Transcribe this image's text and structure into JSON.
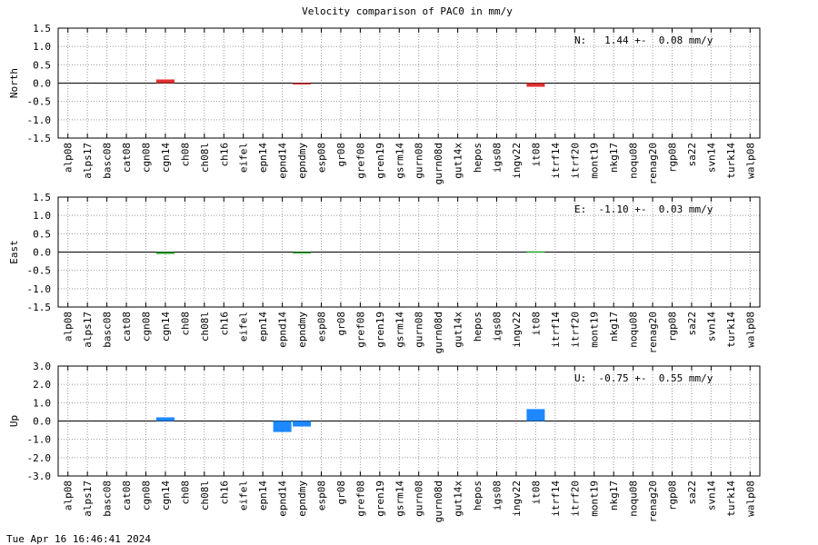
{
  "title": "Velocity comparison of PAC0 in mm/y",
  "footer": "Tue Apr 16 16:46:41 2024",
  "chart_data": [
    {
      "type": "bar",
      "ylabel": "North",
      "annotation": "N:   1.44 +-  0.08 mm/y",
      "color": "#e03030",
      "grid": true,
      "categories": [
        "alp08",
        "alps17",
        "basc08",
        "cat08",
        "cgn08",
        "cgn14",
        "ch08",
        "ch08l",
        "ch16",
        "eifel",
        "epn14",
        "epnd14",
        "epndmy",
        "esp08",
        "gr08",
        "gref08",
        "gren19",
        "gsrm14",
        "gurn08",
        "gurn08d",
        "gut14x",
        "hepos",
        "igs08",
        "ingv22",
        "it08",
        "itrf14",
        "itrf20",
        "mont19",
        "nkg17",
        "noqu08",
        "renag20",
        "rgp08",
        "sa22",
        "svn14",
        "turk14",
        "walp08"
      ],
      "values": [
        null,
        null,
        null,
        null,
        null,
        0.1,
        null,
        null,
        null,
        null,
        null,
        null,
        -0.02,
        null,
        null,
        null,
        null,
        null,
        null,
        null,
        null,
        null,
        null,
        null,
        -0.1,
        null,
        null,
        null,
        null,
        null,
        null,
        null,
        null,
        null,
        null,
        null
      ],
      "ylim": [
        -1.5,
        1.5
      ],
      "yticks": [
        -1.5,
        {
          "value": -1.0,
          "label": "-1.0"
        },
        -0.5,
        {
          "value": 0,
          "label": "0.0"
        },
        0.5,
        {
          "value": 1.0,
          "label": "1.0"
        },
        1.5
      ]
    },
    {
      "type": "bar",
      "ylabel": "East",
      "annotation": "E:  -1.10 +-  0.03 mm/y",
      "color": "#22a022",
      "grid": true,
      "categories": [
        "alp08",
        "alps17",
        "basc08",
        "cat08",
        "cgn08",
        "cgn14",
        "ch08",
        "ch08l",
        "ch16",
        "eifel",
        "epn14",
        "epnd14",
        "epndmy",
        "esp08",
        "gr08",
        "gref08",
        "gren19",
        "gsrm14",
        "gurn08",
        "gurn08d",
        "gut14x",
        "hepos",
        "igs08",
        "ingv22",
        "it08",
        "itrf14",
        "itrf20",
        "mont19",
        "nkg17",
        "noqu08",
        "renag20",
        "rgp08",
        "sa22",
        "svn14",
        "turk14",
        "walp08"
      ],
      "values": [
        null,
        null,
        null,
        null,
        null,
        -0.05,
        null,
        null,
        null,
        null,
        null,
        null,
        -0.02,
        null,
        null,
        null,
        null,
        null,
        null,
        null,
        null,
        null,
        null,
        null,
        0.02,
        null,
        null,
        null,
        null,
        null,
        null,
        null,
        null,
        null,
        null,
        null
      ],
      "ylim": [
        -1.5,
        1.5
      ],
      "yticks": [
        -1.5,
        {
          "value": -1.0,
          "label": "-1.0"
        },
        -0.5,
        {
          "value": 0,
          "label": "0.0"
        },
        0.5,
        {
          "value": 1.0,
          "label": "1.0"
        },
        1.5
      ]
    },
    {
      "type": "bar",
      "ylabel": "Up",
      "annotation": "U:  -0.75 +-  0.55 mm/y",
      "color": "#1e88ff",
      "grid": true,
      "categories": [
        "alp08",
        "alps17",
        "basc08",
        "cat08",
        "cgn08",
        "cgn14",
        "ch08",
        "ch08l",
        "ch16",
        "eifel",
        "epn14",
        "epnd14",
        "epndmy",
        "esp08",
        "gr08",
        "gref08",
        "gren19",
        "gsrm14",
        "gurn08",
        "gurn08d",
        "gut14x",
        "hepos",
        "igs08",
        "ingv22",
        "it08",
        "itrf14",
        "itrf20",
        "mont19",
        "nkg17",
        "noqu08",
        "renag20",
        "rgp08",
        "sa22",
        "svn14",
        "turk14",
        "walp08"
      ],
      "values": [
        null,
        null,
        null,
        null,
        null,
        0.2,
        null,
        null,
        null,
        null,
        null,
        -0.6,
        -0.3,
        null,
        null,
        null,
        null,
        null,
        null,
        null,
        null,
        null,
        null,
        null,
        0.65,
        null,
        null,
        null,
        null,
        null,
        null,
        null,
        null,
        null,
        null,
        null
      ],
      "ylim": [
        -3,
        3
      ],
      "yticks": [
        {
          "value": -3,
          "label": "-3.0"
        },
        {
          "value": -2,
          "label": "-2.0"
        },
        {
          "value": -1,
          "label": "-1.0"
        },
        {
          "value": 0,
          "label": "0.0"
        },
        {
          "value": 1,
          "label": "1.0"
        },
        {
          "value": 2,
          "label": "2.0"
        },
        {
          "value": 3,
          "label": "3.0"
        }
      ]
    }
  ]
}
